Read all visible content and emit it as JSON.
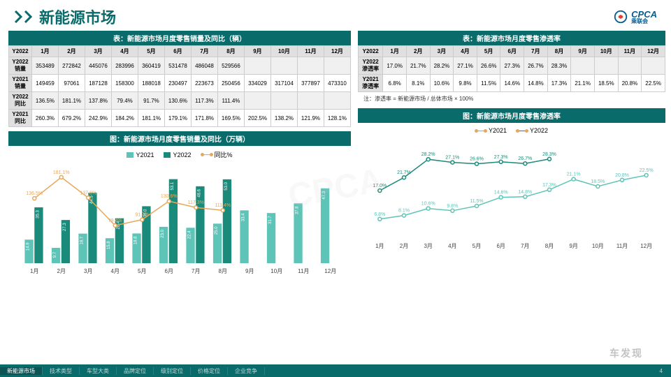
{
  "header": {
    "title": "新能源市场",
    "logo_text": "CPCA",
    "logo_sub": "乘联会"
  },
  "colors": {
    "teal": "#0a6b6b",
    "light_teal": "#5fc4b8",
    "dark_teal": "#1a8a7a",
    "orange": "#e8a85c",
    "grid": "#dcdcdc",
    "axis": "#888"
  },
  "months": [
    "1月",
    "2月",
    "3月",
    "4月",
    "5月",
    "6月",
    "7月",
    "8月",
    "9月",
    "10月",
    "11月",
    "12月"
  ],
  "table1": {
    "title": "表：新能源市场月度零售销量及同比（辆）",
    "head": "Y2022",
    "rows": [
      {
        "h": "Y2022\n销量",
        "v": [
          "353489",
          "272842",
          "445076",
          "283996",
          "360419",
          "531478",
          "486048",
          "529566",
          "",
          "",
          "",
          ""
        ]
      },
      {
        "h": "Y2021\n销量",
        "v": [
          "149459",
          "97061",
          "187128",
          "158300",
          "188018",
          "230497",
          "223673",
          "250456",
          "334029",
          "317104",
          "377897",
          "473310"
        ]
      },
      {
        "h": "Y2022\n同比",
        "v": [
          "136.5%",
          "181.1%",
          "137.8%",
          "79.4%",
          "91.7%",
          "130.6%",
          "117.3%",
          "111.4%",
          "",
          "",
          "",
          ""
        ]
      },
      {
        "h": "Y2021\n同比",
        "v": [
          "260.3%",
          "679.2%",
          "242.9%",
          "184.2%",
          "181.1%",
          "179.1%",
          "171.8%",
          "169.5%",
          "202.5%",
          "138.2%",
          "121.9%",
          "128.1%"
        ]
      }
    ]
  },
  "table2": {
    "title": "表：新能源市场月度零售渗透率",
    "head": "Y2022",
    "rows": [
      {
        "h": "Y2022\n渗透率",
        "v": [
          "17.0%",
          "21.7%",
          "28.2%",
          "27.1%",
          "26.6%",
          "27.3%",
          "26.7%",
          "28.3%",
          "",
          "",
          "",
          ""
        ]
      },
      {
        "h": "Y2021\n渗透率",
        "v": [
          "6.8%",
          "8.1%",
          "10.6%",
          "9.8%",
          "11.5%",
          "14.6%",
          "14.8%",
          "17.3%",
          "21.1%",
          "18.5%",
          "20.8%",
          "22.5%"
        ]
      }
    ],
    "note": "注：渗透率 = 新能源市场 / 总体市场 × 100%"
  },
  "chart1": {
    "title": "图：新能源市场月度零售销量及同比（万辆）",
    "legend": [
      "Y2021",
      "Y2022",
      "同比%"
    ],
    "y2021": [
      14.9,
      9.7,
      18.7,
      15.8,
      18.8,
      23.0,
      22.4,
      25.0,
      33.4,
      31.7,
      37.8,
      47.3
    ],
    "y2022": [
      35.3,
      27.3,
      44.5,
      28.4,
      36.0,
      53.1,
      48.6,
      53.0,
      null,
      null,
      null,
      null
    ],
    "yoy": [
      136.5,
      181.1,
      137.8,
      79.4,
      91.7,
      130.6,
      117.3,
      111.4,
      null,
      null,
      null,
      null
    ],
    "ymax": 60,
    "yoy_max": 200
  },
  "chart2": {
    "title": "图：新能源市场月度零售渗透率",
    "legend": [
      "Y2021",
      "Y2022"
    ],
    "y2021": [
      6.8,
      8.1,
      10.6,
      9.8,
      11.5,
      14.6,
      14.8,
      17.3,
      21.1,
      18.5,
      20.8,
      22.5
    ],
    "y2022": [
      17.0,
      21.7,
      28.2,
      27.1,
      26.6,
      27.3,
      26.7,
      28.3,
      null,
      null,
      null,
      null
    ],
    "ymax": 32
  },
  "footer": {
    "tabs": [
      "新能源市场",
      "技术类型",
      "车型大类",
      "品牌定位",
      "级别定位",
      "价格定位",
      "企业竞争"
    ],
    "active": 0,
    "page": "4"
  },
  "watermark": "车发现"
}
